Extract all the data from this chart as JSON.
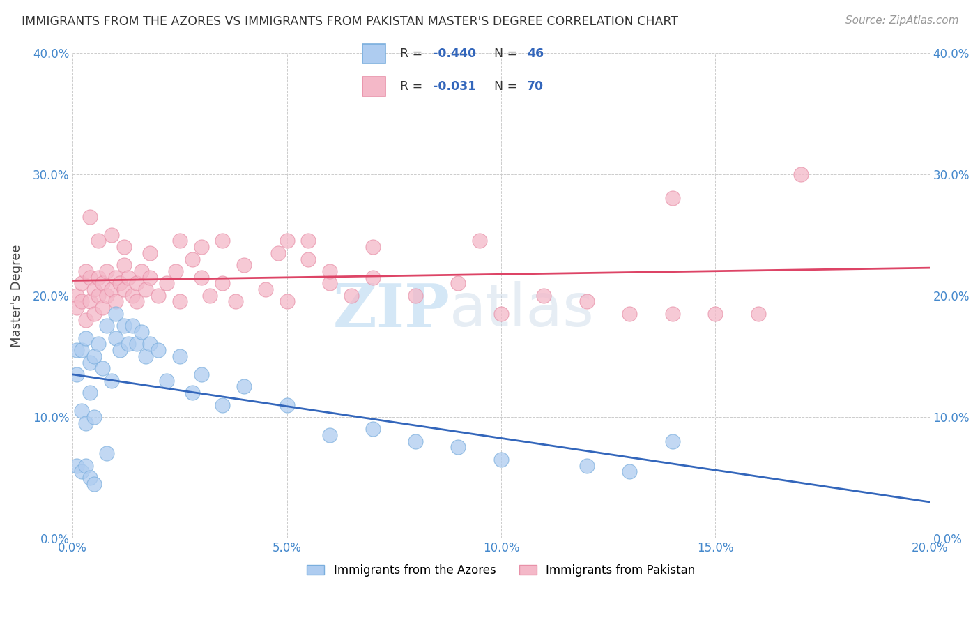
{
  "title": "IMMIGRANTS FROM THE AZORES VS IMMIGRANTS FROM PAKISTAN MASTER'S DEGREE CORRELATION CHART",
  "source": "Source: ZipAtlas.com",
  "ylabel": "Master's Degree",
  "xlabel": "",
  "xlim": [
    0.0,
    0.2
  ],
  "ylim": [
    0.0,
    0.4
  ],
  "xticks": [
    0.0,
    0.05,
    0.1,
    0.15,
    0.2
  ],
  "yticks": [
    0.0,
    0.1,
    0.2,
    0.3,
    0.4
  ],
  "xtick_labels": [
    "0.0%",
    "5.0%",
    "10.0%",
    "15.0%",
    "20.0%"
  ],
  "ytick_labels": [
    "0.0%",
    "10.0%",
    "20.0%",
    "30.0%",
    "40.0%"
  ],
  "series1_name": "Immigrants from the Azores",
  "series1_color": "#aeccf0",
  "series1_edge": "#7aaedd",
  "series1_R": -0.44,
  "series1_N": 46,
  "series2_name": "Immigrants from Pakistan",
  "series2_color": "#f4b8c8",
  "series2_edge": "#e890a8",
  "series2_R": -0.031,
  "series2_N": 70,
  "line1_color": "#3366bb",
  "line2_color": "#dd4466",
  "watermark_zip": "ZIP",
  "watermark_atlas": "atlas",
  "background": "#ffffff",
  "azores_x": [
    0.001,
    0.001,
    0.002,
    0.002,
    0.003,
    0.003,
    0.004,
    0.004,
    0.005,
    0.005,
    0.006,
    0.007,
    0.008,
    0.009,
    0.01,
    0.01,
    0.011,
    0.012,
    0.013,
    0.014,
    0.015,
    0.016,
    0.017,
    0.018,
    0.02,
    0.022,
    0.025,
    0.028,
    0.03,
    0.035,
    0.04,
    0.05,
    0.06,
    0.07,
    0.08,
    0.09,
    0.1,
    0.12,
    0.13,
    0.14,
    0.001,
    0.002,
    0.003,
    0.004,
    0.005,
    0.008
  ],
  "azores_y": [
    0.155,
    0.135,
    0.155,
    0.105,
    0.165,
    0.095,
    0.145,
    0.12,
    0.15,
    0.1,
    0.16,
    0.14,
    0.175,
    0.13,
    0.165,
    0.185,
    0.155,
    0.175,
    0.16,
    0.175,
    0.16,
    0.17,
    0.15,
    0.16,
    0.155,
    0.13,
    0.15,
    0.12,
    0.135,
    0.11,
    0.125,
    0.11,
    0.085,
    0.09,
    0.08,
    0.075,
    0.065,
    0.06,
    0.055,
    0.08,
    0.06,
    0.055,
    0.06,
    0.05,
    0.045,
    0.07
  ],
  "pakistan_x": [
    0.001,
    0.001,
    0.002,
    0.002,
    0.003,
    0.003,
    0.004,
    0.004,
    0.005,
    0.005,
    0.006,
    0.006,
    0.007,
    0.007,
    0.008,
    0.008,
    0.009,
    0.01,
    0.01,
    0.011,
    0.012,
    0.012,
    0.013,
    0.014,
    0.015,
    0.015,
    0.016,
    0.017,
    0.018,
    0.02,
    0.022,
    0.024,
    0.025,
    0.028,
    0.03,
    0.032,
    0.035,
    0.038,
    0.04,
    0.045,
    0.05,
    0.055,
    0.06,
    0.065,
    0.07,
    0.08,
    0.09,
    0.1,
    0.11,
    0.12,
    0.13,
    0.14,
    0.15,
    0.16,
    0.004,
    0.006,
    0.009,
    0.012,
    0.018,
    0.025,
    0.035,
    0.05,
    0.07,
    0.03,
    0.048,
    0.055,
    0.17,
    0.14,
    0.095,
    0.06
  ],
  "pakistan_y": [
    0.2,
    0.19,
    0.21,
    0.195,
    0.22,
    0.18,
    0.215,
    0.195,
    0.205,
    0.185,
    0.215,
    0.2,
    0.21,
    0.19,
    0.22,
    0.2,
    0.205,
    0.215,
    0.195,
    0.21,
    0.205,
    0.225,
    0.215,
    0.2,
    0.21,
    0.195,
    0.22,
    0.205,
    0.215,
    0.2,
    0.21,
    0.22,
    0.195,
    0.23,
    0.215,
    0.2,
    0.21,
    0.195,
    0.225,
    0.205,
    0.195,
    0.23,
    0.21,
    0.2,
    0.215,
    0.2,
    0.21,
    0.185,
    0.2,
    0.195,
    0.185,
    0.185,
    0.185,
    0.185,
    0.265,
    0.245,
    0.25,
    0.24,
    0.235,
    0.245,
    0.245,
    0.245,
    0.24,
    0.24,
    0.235,
    0.245,
    0.3,
    0.28,
    0.245,
    0.22
  ]
}
